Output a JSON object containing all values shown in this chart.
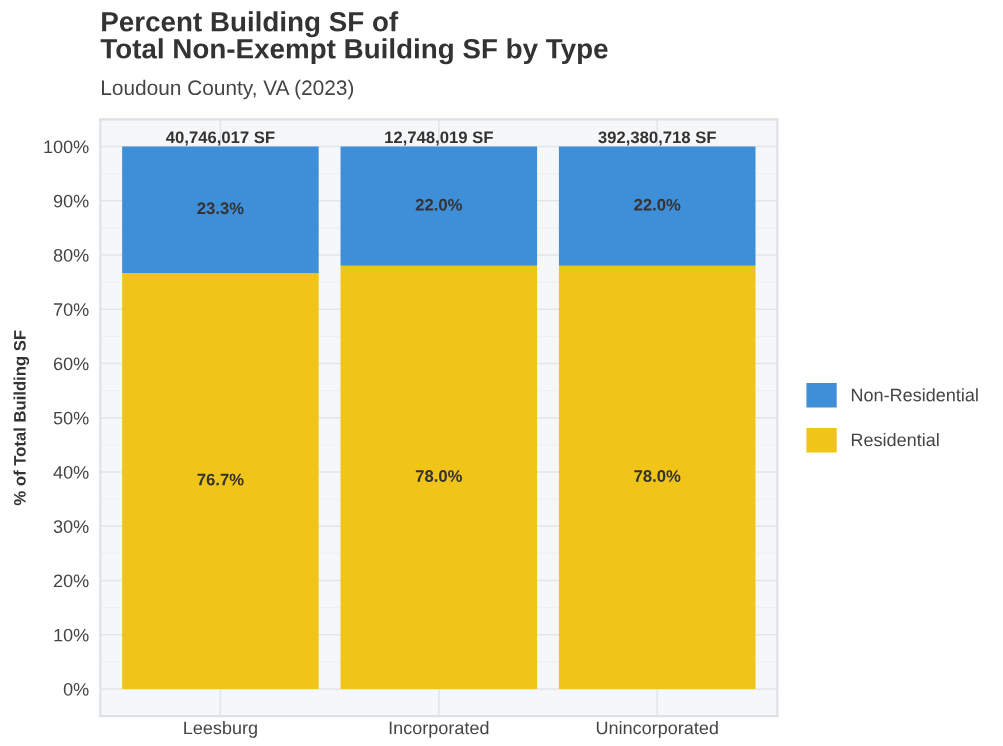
{
  "chart_data": {
    "type": "bar",
    "title": "Percent Building SF of\nTotal Non-Exempt Building SF by Type",
    "subtitle": "Loudoun County, VA (2023)",
    "ylabel": "% of Total Building SF",
    "categories": [
      "Leesburg",
      "Incorporated",
      "Unincorporated"
    ],
    "stacked": true,
    "series": [
      {
        "name": "Residential",
        "color": "#f0c419",
        "values": [
          76.7,
          78.0,
          78.0
        ],
        "value_labels": [
          "76.7%",
          "78.0%",
          "78.0%"
        ]
      },
      {
        "name": "Non-Residential",
        "color": "#3f8fd8",
        "values": [
          23.3,
          22.0,
          22.0
        ],
        "value_labels": [
          "23.3%",
          "22.0%",
          "22.0%"
        ]
      }
    ],
    "annotations": [
      {
        "text": "40,746,017 SF",
        "x": "Leesburg",
        "y": 100
      },
      {
        "text": "12,748,019 SF",
        "x": "Incorporated",
        "y": 100
      },
      {
        "text": "392,380,718 SF",
        "x": "Unincorporated",
        "y": 100
      }
    ],
    "ylim": [
      -5,
      105
    ],
    "yticks": [
      {
        "value": 0,
        "label": "0%"
      },
      {
        "value": 10,
        "label": "10%"
      },
      {
        "value": 20,
        "label": "20%"
      },
      {
        "value": 30,
        "label": "30%"
      },
      {
        "value": 40,
        "label": "40%"
      },
      {
        "value": 50,
        "label": "50%"
      },
      {
        "value": 60,
        "label": "60%"
      },
      {
        "value": 70,
        "label": "70%"
      },
      {
        "value": 80,
        "label": "80%"
      },
      {
        "value": 90,
        "label": "90%"
      },
      {
        "value": 100,
        "label": "100%"
      }
    ],
    "grid": true,
    "legend": "right"
  }
}
